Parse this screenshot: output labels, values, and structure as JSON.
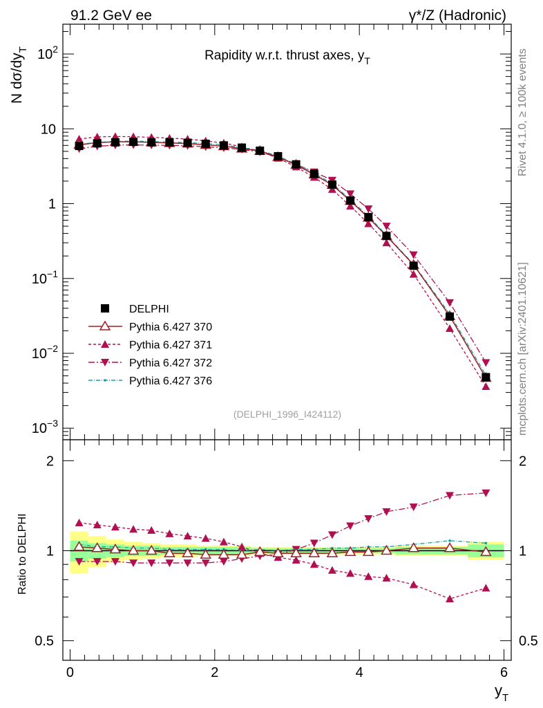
{
  "header": {
    "left": "91.2 GeV ee",
    "right": "γ*/Z (Hadronic)"
  },
  "side_text": {
    "rivet": "Rivet 4.1.0, ≥ 100k events",
    "mcplots": "mcplots.cern.ch [arXiv:2401.10621]"
  },
  "colors": {
    "data": "#000000",
    "p370": "#a31c22",
    "p371": "#b01050",
    "p372": "#b01050",
    "p376": "#10a0a0",
    "band_inner": "#99ff99",
    "band_outer": "#ffff88"
  },
  "chart_data": [
    {
      "type": "scatter",
      "id": "main",
      "title": "Rapidity w.r.t. thrust axes, y",
      "title_sub": "T",
      "ylabel": "N  dσ/dy",
      "ylabel_sub": "T",
      "yscale": "log",
      "ylim": [
        0.0007,
        250
      ],
      "xlim": [
        -0.1,
        6.1
      ],
      "y_ticks": [
        {
          "value": 0.001,
          "base": "10",
          "exp": "−3"
        },
        {
          "value": 0.01,
          "base": "10",
          "exp": "−2"
        },
        {
          "value": 0.1,
          "base": "10",
          "exp": "−1"
        },
        {
          "value": 1,
          "base": "1",
          "exp": ""
        },
        {
          "value": 10,
          "base": "10",
          "exp": ""
        },
        {
          "value": 100,
          "base": "10",
          "exp": "2"
        }
      ],
      "watermark": "(DELPHI_1996_I424112)",
      "x": [
        0.125,
        0.375,
        0.625,
        0.875,
        1.125,
        1.375,
        1.625,
        1.875,
        2.125,
        2.375,
        2.625,
        2.875,
        3.125,
        3.375,
        3.625,
        3.875,
        4.125,
        4.375,
        4.75,
        5.25,
        5.75
      ],
      "series": [
        {
          "name": "DELPHI",
          "key": "data",
          "marker": "square",
          "dash": "none",
          "values": [
            5.9,
            6.4,
            6.6,
            6.7,
            6.6,
            6.6,
            6.5,
            6.3,
            6.0,
            5.6,
            5.1,
            4.3,
            3.35,
            2.5,
            1.8,
            1.1,
            0.66,
            0.37,
            0.148,
            0.031,
            0.0048
          ]
        },
        {
          "name": "Pythia 6.427 370",
          "key": "p370",
          "marker": "triangle-open",
          "dash": "none",
          "values": [
            6.1,
            6.55,
            6.7,
            6.7,
            6.6,
            6.45,
            6.35,
            6.1,
            5.85,
            5.45,
            5.05,
            4.2,
            3.3,
            2.45,
            1.78,
            1.09,
            0.65,
            0.37,
            0.152,
            0.0315,
            0.0047
          ]
        },
        {
          "name": "Pythia 6.427 371",
          "key": "p371",
          "marker": "triangle-up",
          "dash": "4,3",
          "values": [
            7.3,
            7.8,
            7.9,
            7.85,
            7.7,
            7.5,
            7.3,
            6.9,
            6.45,
            5.75,
            5.0,
            4.05,
            3.1,
            2.25,
            1.55,
            0.93,
            0.54,
            0.3,
            0.114,
            0.0215,
            0.0036
          ]
        },
        {
          "name": "Pythia 6.427 372",
          "key": "p372",
          "marker": "triangle-down",
          "dash": "9,3,2,3",
          "values": [
            5.4,
            5.85,
            6.05,
            6.1,
            6.05,
            6.0,
            5.95,
            5.75,
            5.55,
            5.3,
            4.9,
            4.15,
            3.35,
            2.65,
            2.05,
            1.35,
            0.85,
            0.5,
            0.207,
            0.0475,
            0.0075
          ]
        },
        {
          "name": "Pythia 6.427 376",
          "key": "p376",
          "marker": "dot",
          "dash": "6,2,1,2",
          "values": [
            6.2,
            6.6,
            6.8,
            6.85,
            6.75,
            6.65,
            6.55,
            6.35,
            6.1,
            5.6,
            5.15,
            4.3,
            3.4,
            2.55,
            1.85,
            1.13,
            0.68,
            0.38,
            0.155,
            0.0335,
            0.0051
          ]
        }
      ]
    },
    {
      "type": "scatter",
      "id": "ratio",
      "ylabel": "Ratio to DELPHI",
      "yscale": "log",
      "ylim": [
        0.43,
        2.35
      ],
      "xlim": [
        -0.1,
        6.1
      ],
      "xlabel": "y",
      "xlabel_sub": "T",
      "x_ticks": [
        0,
        2,
        4,
        6
      ],
      "y_ticks": [
        0.5,
        1,
        2
      ],
      "x": [
        0.125,
        0.375,
        0.625,
        0.875,
        1.125,
        1.375,
        1.625,
        1.875,
        2.125,
        2.375,
        2.625,
        2.875,
        3.125,
        3.375,
        3.625,
        3.875,
        4.125,
        4.375,
        4.75,
        5.25,
        5.75
      ],
      "x_edges": [
        0,
        0.25,
        0.5,
        0.75,
        1,
        1.25,
        1.5,
        1.75,
        2,
        2.25,
        2.5,
        2.75,
        3,
        3.25,
        3.5,
        3.75,
        4,
        4.25,
        4.5,
        5,
        5.5,
        6
      ],
      "band_inner": [
        0.08,
        0.06,
        0.05,
        0.04,
        0.04,
        0.03,
        0.03,
        0.03,
        0.03,
        0.03,
        0.02,
        0.02,
        0.02,
        0.02,
        0.02,
        0.02,
        0.02,
        0.02,
        0.03,
        0.03,
        0.05
      ],
      "band_outer": [
        0.16,
        0.12,
        0.09,
        0.07,
        0.06,
        0.05,
        0.05,
        0.04,
        0.04,
        0.04,
        0.03,
        0.03,
        0.03,
        0.03,
        0.03,
        0.03,
        0.03,
        0.03,
        0.04,
        0.04,
        0.07
      ],
      "series": [
        {
          "name": "Pythia 6.427 370",
          "key": "p370",
          "marker": "triangle-open",
          "dash": "none",
          "values": [
            1.03,
            1.02,
            1.01,
            1.0,
            1.0,
            0.98,
            0.98,
            0.97,
            0.97,
            0.97,
            0.99,
            0.98,
            0.98,
            0.98,
            0.98,
            0.99,
            0.99,
            1.0,
            1.02,
            1.02,
            0.99
          ]
        },
        {
          "name": "Pythia 6.427 371",
          "key": "p371",
          "marker": "triangle-up",
          "dash": "4,3",
          "values": [
            1.24,
            1.22,
            1.2,
            1.18,
            1.17,
            1.14,
            1.12,
            1.1,
            1.07,
            1.03,
            0.98,
            0.95,
            0.93,
            0.9,
            0.86,
            0.84,
            0.82,
            0.81,
            0.77,
            0.69,
            0.75
          ]
        },
        {
          "name": "Pythia 6.427 372",
          "key": "p372",
          "marker": "triangle-down",
          "dash": "9,3,2,3",
          "values": [
            0.92,
            0.92,
            0.92,
            0.91,
            0.91,
            0.91,
            0.91,
            0.91,
            0.92,
            0.94,
            0.96,
            0.97,
            1.01,
            1.06,
            1.13,
            1.21,
            1.28,
            1.35,
            1.4,
            1.53,
            1.56
          ]
        },
        {
          "name": "Pythia 6.427 376",
          "key": "p376",
          "marker": "dot",
          "dash": "6,2,1,2",
          "values": [
            1.05,
            1.03,
            1.03,
            1.02,
            1.02,
            1.01,
            1.01,
            1.01,
            1.01,
            1.0,
            1.01,
            1.0,
            1.01,
            1.01,
            1.02,
            1.02,
            1.03,
            1.03,
            1.05,
            1.08,
            1.06
          ]
        }
      ]
    }
  ]
}
